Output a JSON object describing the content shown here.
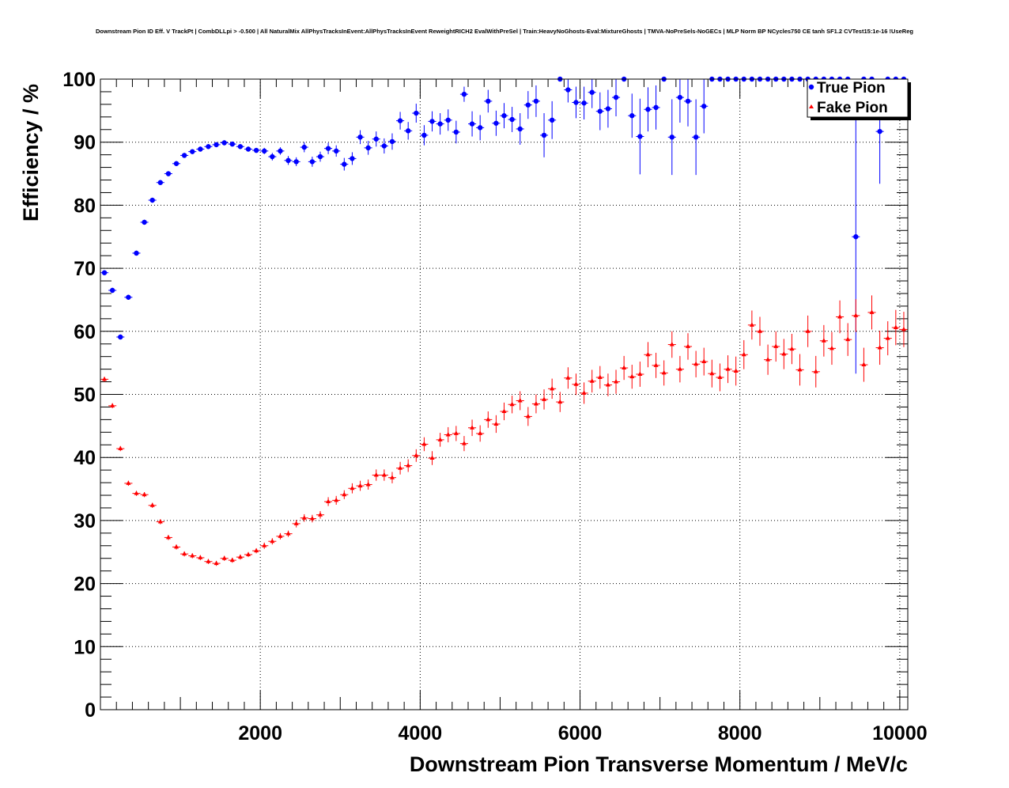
{
  "chart_data": {
    "type": "scatter",
    "title": "Downstream Pion ID Eff. V TrackPt | CombDLLpi > -0.500 | All NaturalMix AllPhysTracksInEvent:AllPhysTracksInEvent ReweightRICH2 EvalWithPreSel | Train:HeavyNoGhosts-Eval:MixtureGhosts | TMVA-NoPreSels-NoGECs | MLP Norm BP NCycles750 CE tanh SF1.2 CVTest15:1e-16 !UseReg",
    "xlabel": "Downstream Pion Transverse Momentum / MeV/c",
    "ylabel": "Efficiency / %",
    "xlim": [
      0,
      10100
    ],
    "ylim": [
      0,
      100
    ],
    "xticks": [
      2000,
      4000,
      6000,
      8000,
      10000
    ],
    "yticks": [
      0,
      10,
      20,
      30,
      40,
      50,
      60,
      70,
      80,
      90,
      100
    ],
    "grid": true,
    "legend_position": "top-right",
    "series": [
      {
        "name": "True Pion",
        "color": "#0000ff",
        "marker": "circle",
        "x": [
          50,
          150,
          250,
          350,
          450,
          550,
          650,
          750,
          850,
          950,
          1050,
          1150,
          1250,
          1350,
          1450,
          1550,
          1650,
          1750,
          1850,
          1950,
          2050,
          2150,
          2250,
          2350,
          2450,
          2550,
          2650,
          2750,
          2850,
          2950,
          3050,
          3150,
          3250,
          3350,
          3450,
          3550,
          3650,
          3750,
          3850,
          3950,
          4050,
          4150,
          4250,
          4350,
          4450,
          4550,
          4650,
          4750,
          4850,
          4950,
          5050,
          5150,
          5250,
          5350,
          5450,
          5550,
          5650,
          5750,
          5850,
          5950,
          6050,
          6150,
          6250,
          6350,
          6450,
          6550,
          6650,
          6750,
          6850,
          6950,
          7050,
          7150,
          7250,
          7350,
          7450,
          7550,
          7650,
          7750,
          7850,
          7950,
          8050,
          8150,
          8250,
          8350,
          8450,
          8550,
          8650,
          8750,
          8850,
          8950,
          9050,
          9150,
          9250,
          9350,
          9450,
          9550,
          9650,
          9750,
          9850,
          9950,
          10050
        ],
        "y": [
          69.3,
          66.5,
          59.1,
          65.4,
          72.4,
          77.3,
          80.8,
          83.6,
          85.0,
          86.6,
          87.9,
          88.5,
          88.9,
          89.3,
          89.6,
          89.9,
          89.7,
          89.3,
          88.9,
          88.7,
          88.6,
          87.7,
          88.6,
          87.1,
          86.9,
          89.2,
          86.9,
          87.7,
          89.0,
          88.6,
          86.5,
          87.4,
          90.8,
          89.1,
          90.5,
          89.4,
          90.1,
          93.4,
          91.8,
          94.6,
          91.1,
          93.3,
          92.9,
          93.5,
          91.6,
          97.6,
          92.9,
          92.3,
          96.5,
          93.0,
          94.2,
          93.6,
          92.1,
          95.9,
          96.5,
          91.1,
          93.5,
          100.0,
          98.3,
          96.3,
          96.2,
          97.9,
          94.9,
          95.3,
          97.1,
          100.0,
          94.2,
          90.9,
          95.2,
          95.5,
          100.0,
          90.8,
          97.1,
          96.5,
          90.8,
          95.7,
          100.0,
          100.0,
          100.0,
          100.0,
          100.0,
          100.0,
          100.0,
          100.0,
          100.0,
          100.0,
          100.0,
          100.0,
          100.0,
          100.0,
          100.0,
          100.0,
          100.0,
          100.0,
          75.0,
          100.0,
          100.0,
          91.7,
          100.0,
          100.0,
          100.0
        ],
        "yerr": [
          0.4,
          0.4,
          0.4,
          0.4,
          0.4,
          0.4,
          0.4,
          0.4,
          0.4,
          0.4,
          0.4,
          0.4,
          0.4,
          0.4,
          0.4,
          0.4,
          0.4,
          0.4,
          0.4,
          0.4,
          0.5,
          0.6,
          0.6,
          0.7,
          0.7,
          0.8,
          0.8,
          0.8,
          0.9,
          0.9,
          1.0,
          1.0,
          1.1,
          1.1,
          1.2,
          1.2,
          1.3,
          1.4,
          1.4,
          1.5,
          1.6,
          1.6,
          1.7,
          1.7,
          1.8,
          1.2,
          2.0,
          2.0,
          1.8,
          2.0,
          2.0,
          2.0,
          2.5,
          2.2,
          2.5,
          3.5,
          3.0,
          0.0,
          2.0,
          2.5,
          2.6,
          2.5,
          3.0,
          3.0,
          3.0,
          0.0,
          3.5,
          6.0,
          3.5,
          3.5,
          0.0,
          6.0,
          4.0,
          4.0,
          6.0,
          4.3,
          0.0,
          0.0,
          0.0,
          0.0,
          0.0,
          0.0,
          0.0,
          0.0,
          0.0,
          0.0,
          0.0,
          0.0,
          0.0,
          0.0,
          0.0,
          0.0,
          0.0,
          0.0,
          21.7,
          0.0,
          0.0,
          8.3,
          0.0,
          0.0,
          0.0
        ]
      },
      {
        "name": "Fake Pion",
        "color": "#ff0000",
        "marker": "triangle",
        "x": [
          50,
          150,
          250,
          350,
          450,
          550,
          650,
          750,
          850,
          950,
          1050,
          1150,
          1250,
          1350,
          1450,
          1550,
          1650,
          1750,
          1850,
          1950,
          2050,
          2150,
          2250,
          2350,
          2450,
          2550,
          2650,
          2750,
          2850,
          2950,
          3050,
          3150,
          3250,
          3350,
          3450,
          3550,
          3650,
          3750,
          3850,
          3950,
          4050,
          4150,
          4250,
          4350,
          4450,
          4550,
          4650,
          4750,
          4850,
          4950,
          5050,
          5150,
          5250,
          5350,
          5450,
          5550,
          5650,
          5750,
          5850,
          5950,
          6050,
          6150,
          6250,
          6350,
          6450,
          6550,
          6650,
          6750,
          6850,
          6950,
          7050,
          7150,
          7250,
          7350,
          7450,
          7550,
          7650,
          7750,
          7850,
          7950,
          8050,
          8150,
          8250,
          8350,
          8450,
          8550,
          8650,
          8750,
          8850,
          8950,
          9050,
          9150,
          9250,
          9350,
          9450,
          9550,
          9650,
          9750,
          9850,
          9950,
          10050
        ],
        "y": [
          52.4,
          48.2,
          41.4,
          35.9,
          34.3,
          34.1,
          32.4,
          29.8,
          27.3,
          25.8,
          24.7,
          24.4,
          24.1,
          23.5,
          23.2,
          24.0,
          23.7,
          24.2,
          24.6,
          25.2,
          26.0,
          26.7,
          27.5,
          27.9,
          29.5,
          30.4,
          30.3,
          30.9,
          33.0,
          33.2,
          34.1,
          35.1,
          35.5,
          35.7,
          37.2,
          37.2,
          36.8,
          38.3,
          38.7,
          40.3,
          42.1,
          39.9,
          42.8,
          43.6,
          43.8,
          42.2,
          44.7,
          43.8,
          46.0,
          45.3,
          47.3,
          48.4,
          49.0,
          46.5,
          48.5,
          49.2,
          50.9,
          48.8,
          52.6,
          51.6,
          50.2,
          52.1,
          52.7,
          51.5,
          52.0,
          54.2,
          52.8,
          53.2,
          56.3,
          54.6,
          53.4,
          57.9,
          54.0,
          57.6,
          54.8,
          55.2,
          53.3,
          52.7,
          54.0,
          53.7,
          56.3,
          61.0,
          60.0,
          55.5,
          57.6,
          56.4,
          57.2,
          53.9,
          60.0,
          53.6,
          58.5,
          57.3,
          62.3,
          58.7,
          62.5,
          54.7,
          63.0,
          57.4,
          58.9,
          60.6,
          60.3
        ],
        "yerr": [
          0.4,
          0.4,
          0.4,
          0.4,
          0.4,
          0.4,
          0.4,
          0.4,
          0.4,
          0.4,
          0.4,
          0.4,
          0.4,
          0.4,
          0.4,
          0.4,
          0.4,
          0.4,
          0.4,
          0.4,
          0.5,
          0.5,
          0.5,
          0.5,
          0.6,
          0.6,
          0.6,
          0.6,
          0.7,
          0.7,
          0.7,
          0.8,
          0.8,
          0.8,
          0.9,
          0.9,
          0.9,
          1.0,
          1.0,
          1.0,
          1.1,
          1.1,
          1.1,
          1.2,
          1.2,
          1.2,
          1.3,
          1.3,
          1.3,
          1.4,
          1.4,
          1.4,
          1.5,
          1.5,
          1.5,
          1.6,
          1.6,
          1.6,
          1.7,
          1.7,
          1.7,
          1.8,
          1.8,
          1.8,
          1.9,
          1.9,
          1.9,
          2.0,
          2.0,
          2.0,
          2.0,
          2.1,
          2.1,
          2.1,
          2.1,
          2.2,
          2.2,
          2.2,
          2.2,
          2.3,
          2.3,
          2.3,
          2.3,
          2.4,
          2.4,
          2.4,
          2.4,
          2.5,
          2.5,
          2.5,
          2.5,
          2.6,
          2.6,
          2.6,
          2.6,
          2.7,
          2.7,
          2.7,
          2.7,
          2.8,
          2.8
        ]
      }
    ]
  }
}
